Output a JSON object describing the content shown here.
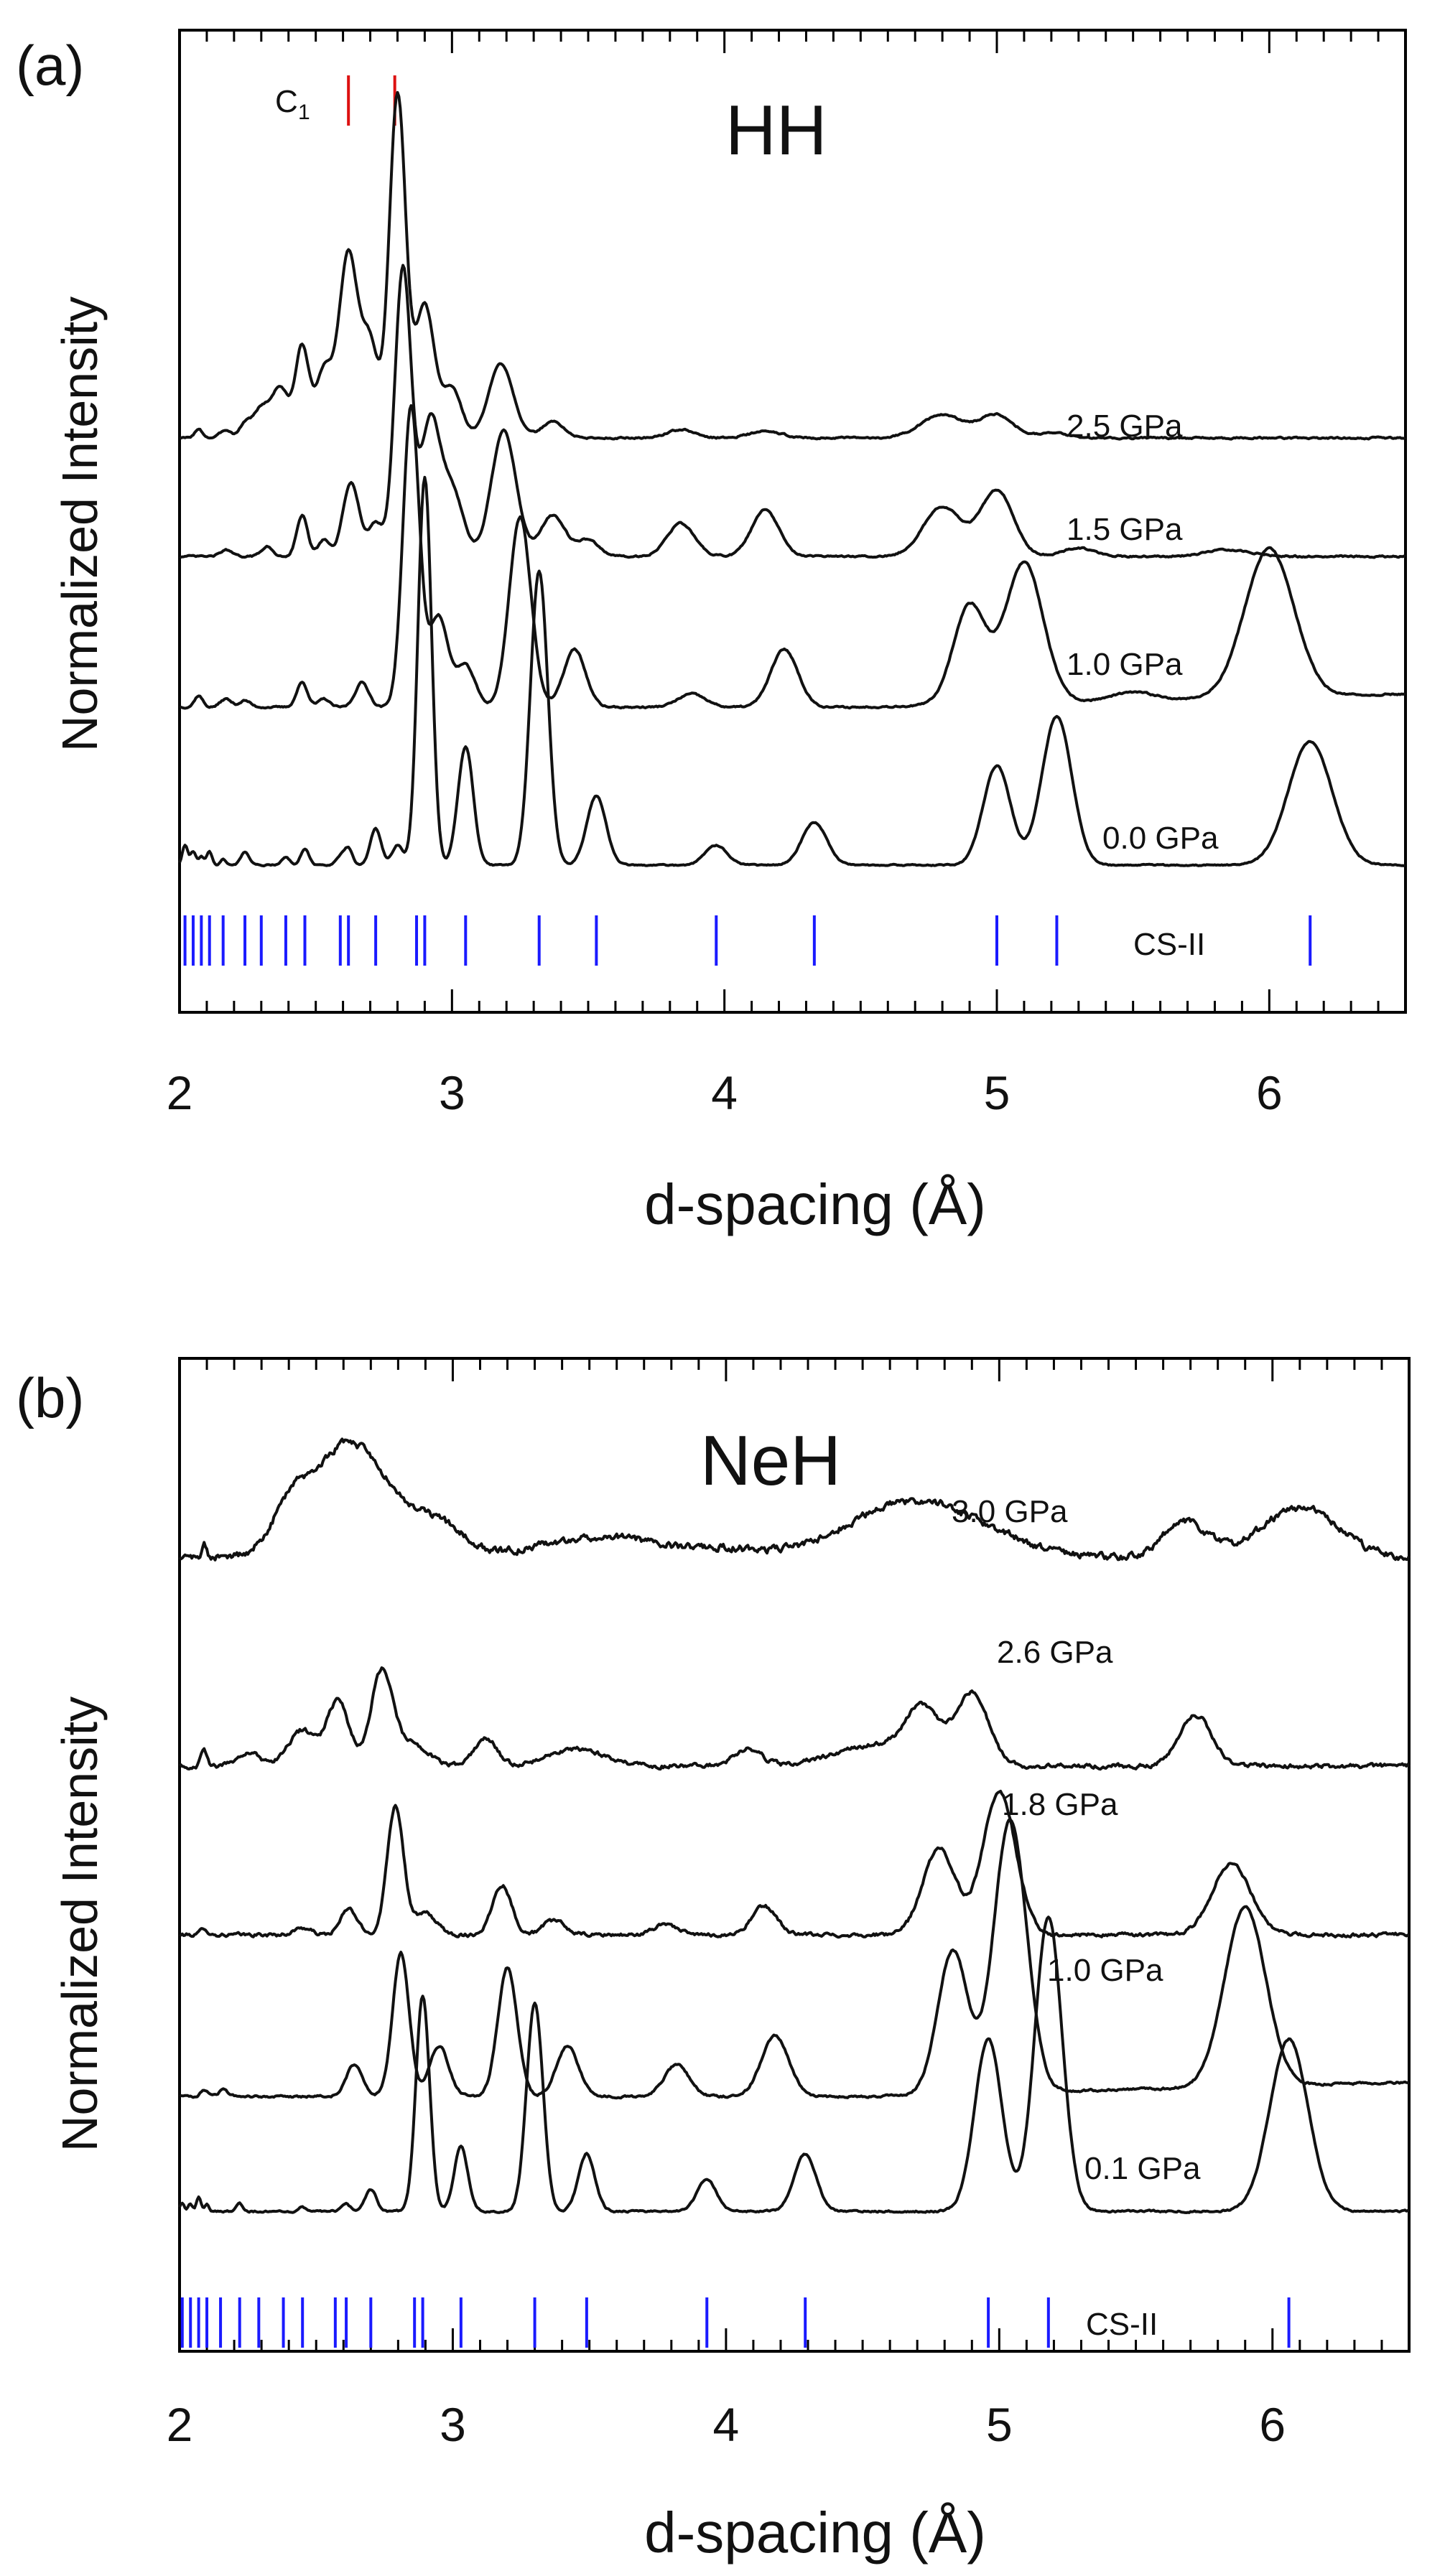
{
  "chart_data": [
    {
      "type": "line",
      "panel_label": "(a)",
      "title": "HH",
      "xlabel": "d-spacing (Å)",
      "ylabel": "Normalized Intensity",
      "xlim": [
        2,
        6.5
      ],
      "ylim": [
        0,
        6
      ],
      "xticks": [
        "2",
        "3",
        "4",
        "5",
        "6"
      ],
      "red_markers": {
        "label": "C",
        "subscript": "1",
        "x": [
          2.62,
          2.79
        ]
      },
      "reference_markers": {
        "label": "CS-II",
        "x": [
          2.02,
          2.05,
          2.08,
          2.11,
          2.16,
          2.24,
          2.3,
          2.39,
          2.46,
          2.59,
          2.62,
          2.72,
          2.87,
          2.9,
          3.05,
          3.32,
          3.53,
          3.97,
          4.33,
          5.0,
          5.22,
          6.15
        ]
      },
      "series": [
        {
          "name": "2.5 GPa",
          "baseline": 3.2,
          "noise": 0.004,
          "tail": 0.0,
          "peaks": [
            [
              2.07,
              0.05,
              0.015
            ],
            [
              2.17,
              0.05,
              0.02
            ],
            [
              2.24,
              0.08,
              0.02
            ],
            [
              2.3,
              0.18,
              0.03
            ],
            [
              2.37,
              0.3,
              0.03
            ],
            [
              2.45,
              0.55,
              0.025
            ],
            [
              2.53,
              0.4,
              0.03
            ],
            [
              2.62,
              1.12,
              0.035
            ],
            [
              2.7,
              0.55,
              0.03
            ],
            [
              2.8,
              2.08,
              0.03
            ],
            [
              2.9,
              0.8,
              0.035
            ],
            [
              3.0,
              0.3,
              0.035
            ],
            [
              3.18,
              0.45,
              0.045
            ],
            [
              3.37,
              0.1,
              0.04
            ],
            [
              3.84,
              0.05,
              0.05
            ],
            [
              4.15,
              0.04,
              0.06
            ],
            [
              4.8,
              0.14,
              0.08
            ],
            [
              5.0,
              0.14,
              0.06
            ],
            [
              5.2,
              0.03,
              0.06
            ]
          ]
        },
        {
          "name": "1.5 GPa",
          "baseline": 2.1,
          "noise": 0.004,
          "tail": 0.0,
          "peaks": [
            [
              2.17,
              0.04,
              0.02
            ],
            [
              2.32,
              0.06,
              0.02
            ],
            [
              2.45,
              0.25,
              0.02
            ],
            [
              2.53,
              0.1,
              0.02
            ],
            [
              2.63,
              0.45,
              0.03
            ],
            [
              2.72,
              0.2,
              0.025
            ],
            [
              2.82,
              1.75,
              0.03
            ],
            [
              2.92,
              0.8,
              0.035
            ],
            [
              3.0,
              0.4,
              0.04
            ],
            [
              3.19,
              0.76,
              0.045
            ],
            [
              3.37,
              0.25,
              0.045
            ],
            [
              3.5,
              0.1,
              0.04
            ],
            [
              3.84,
              0.2,
              0.05
            ],
            [
              4.15,
              0.28,
              0.05
            ],
            [
              4.8,
              0.3,
              0.07
            ],
            [
              5.0,
              0.4,
              0.06
            ],
            [
              5.3,
              0.05,
              0.06
            ],
            [
              5.85,
              0.04,
              0.08
            ]
          ]
        },
        {
          "name": "1.0 GPa",
          "baseline": 1.1,
          "noise": 0.004,
          "tail": 0.08,
          "peaks": [
            [
              2.07,
              0.07,
              0.015
            ],
            [
              2.17,
              0.05,
              0.02
            ],
            [
              2.24,
              0.04,
              0.02
            ],
            [
              2.45,
              0.15,
              0.02
            ],
            [
              2.53,
              0.05,
              0.02
            ],
            [
              2.67,
              0.15,
              0.025
            ],
            [
              2.85,
              1.82,
              0.03
            ],
            [
              2.95,
              0.55,
              0.035
            ],
            [
              3.05,
              0.25,
              0.035
            ],
            [
              3.25,
              1.15,
              0.04
            ],
            [
              3.45,
              0.35,
              0.04
            ],
            [
              3.88,
              0.08,
              0.05
            ],
            [
              4.22,
              0.35,
              0.05
            ],
            [
              4.9,
              0.6,
              0.06
            ],
            [
              5.1,
              0.85,
              0.07
            ],
            [
              5.5,
              0.05,
              0.08
            ],
            [
              6.0,
              0.9,
              0.09
            ]
          ]
        },
        {
          "name": "0.0 GPa",
          "baseline": 0.0,
          "noise": 0.003,
          "tail": 0.0,
          "peaks": [
            [
              2.02,
              0.12,
              0.01
            ],
            [
              2.05,
              0.08,
              0.01
            ],
            [
              2.08,
              0.05,
              0.01
            ],
            [
              2.11,
              0.08,
              0.01
            ],
            [
              2.16,
              0.04,
              0.01
            ],
            [
              2.24,
              0.08,
              0.015
            ],
            [
              2.39,
              0.05,
              0.015
            ],
            [
              2.46,
              0.1,
              0.015
            ],
            [
              2.59,
              0.05,
              0.015
            ],
            [
              2.62,
              0.1,
              0.015
            ],
            [
              2.72,
              0.22,
              0.02
            ],
            [
              2.8,
              0.12,
              0.02
            ],
            [
              2.9,
              2.35,
              0.025
            ],
            [
              3.05,
              0.72,
              0.028
            ],
            [
              3.32,
              1.78,
              0.032
            ],
            [
              3.53,
              0.42,
              0.035
            ],
            [
              3.97,
              0.12,
              0.04
            ],
            [
              4.33,
              0.26,
              0.045
            ],
            [
              5.0,
              0.6,
              0.05
            ],
            [
              5.22,
              0.9,
              0.055
            ],
            [
              6.15,
              0.75,
              0.08
            ]
          ]
        }
      ]
    },
    {
      "type": "line",
      "panel_label": "(b)",
      "title": "NeH",
      "xlabel": "d-spacing (Å)",
      "ylabel": "Normalized Intensity",
      "xlim": [
        2,
        6.5
      ],
      "ylim": [
        0,
        5.8
      ],
      "xticks": [
        "2",
        "3",
        "4",
        "5",
        "6"
      ],
      "reference_markers": {
        "label": "CS-II",
        "x": [
          2.01,
          2.04,
          2.07,
          2.1,
          2.15,
          2.22,
          2.29,
          2.38,
          2.45,
          2.57,
          2.61,
          2.7,
          2.86,
          2.89,
          3.03,
          3.3,
          3.49,
          3.93,
          4.29,
          4.96,
          5.18,
          6.06
        ]
      },
      "series": [
        {
          "name": "3.0 GPa",
          "baseline": 4.1,
          "noise": 0.02,
          "tail": 0.0,
          "peaks": [
            [
              2.09,
              0.1,
              0.01
            ],
            [
              2.4,
              0.2,
              0.06
            ],
            [
              2.62,
              0.8,
              0.15
            ],
            [
              2.95,
              0.2,
              0.1
            ],
            [
              3.55,
              0.15,
              0.22
            ],
            [
              4.0,
              0.05,
              0.1
            ],
            [
              4.7,
              0.4,
              0.25
            ],
            [
              5.68,
              0.25,
              0.08
            ],
            [
              6.1,
              0.35,
              0.14
            ]
          ]
        },
        {
          "name": "2.6 GPa",
          "baseline": 3.05,
          "noise": 0.012,
          "tail": 0.0,
          "peaks": [
            [
              2.09,
              0.1,
              0.012
            ],
            [
              2.25,
              0.1,
              0.04
            ],
            [
              2.45,
              0.25,
              0.05
            ],
            [
              2.58,
              0.45,
              0.04
            ],
            [
              2.74,
              0.65,
              0.04
            ],
            [
              2.85,
              0.15,
              0.06
            ],
            [
              3.12,
              0.2,
              0.04
            ],
            [
              3.45,
              0.12,
              0.1
            ],
            [
              4.08,
              0.12,
              0.05
            ],
            [
              4.55,
              0.15,
              0.15
            ],
            [
              4.72,
              0.35,
              0.06
            ],
            [
              4.9,
              0.5,
              0.06
            ],
            [
              5.72,
              0.35,
              0.06
            ]
          ]
        },
        {
          "name": "1.8 GPa",
          "baseline": 1.95,
          "noise": 0.01,
          "tail": 0.0,
          "peaks": [
            [
              2.09,
              0.05,
              0.012
            ],
            [
              2.45,
              0.05,
              0.03
            ],
            [
              2.62,
              0.18,
              0.03
            ],
            [
              2.79,
              0.9,
              0.03
            ],
            [
              2.9,
              0.15,
              0.04
            ],
            [
              3.18,
              0.35,
              0.035
            ],
            [
              3.37,
              0.1,
              0.04
            ],
            [
              3.78,
              0.08,
              0.04
            ],
            [
              4.14,
              0.2,
              0.045
            ],
            [
              4.78,
              0.6,
              0.06
            ],
            [
              5.0,
              1.0,
              0.06
            ],
            [
              5.85,
              0.5,
              0.07
            ]
          ]
        },
        {
          "name": "1.0 GPa",
          "baseline": 0.95,
          "noise": 0.006,
          "tail": 0.1,
          "peaks": [
            [
              2.09,
              0.05,
              0.012
            ],
            [
              2.16,
              0.05,
              0.015
            ],
            [
              2.64,
              0.22,
              0.03
            ],
            [
              2.81,
              1.0,
              0.03
            ],
            [
              2.95,
              0.35,
              0.035
            ],
            [
              3.2,
              0.9,
              0.035
            ],
            [
              3.42,
              0.35,
              0.04
            ],
            [
              3.82,
              0.22,
              0.045
            ],
            [
              4.18,
              0.42,
              0.05
            ],
            [
              4.83,
              1.0,
              0.055
            ],
            [
              5.04,
              1.9,
              0.06
            ],
            [
              5.9,
              1.25,
              0.075
            ]
          ]
        },
        {
          "name": "0.1 GPa",
          "baseline": 0.0,
          "noise": 0.005,
          "tail": 0.0,
          "peaks": [
            [
              2.01,
              0.06,
              0.008
            ],
            [
              2.04,
              0.05,
              0.008
            ],
            [
              2.07,
              0.1,
              0.008
            ],
            [
              2.1,
              0.05,
              0.008
            ],
            [
              2.22,
              0.05,
              0.012
            ],
            [
              2.45,
              0.03,
              0.012
            ],
            [
              2.61,
              0.05,
              0.015
            ],
            [
              2.7,
              0.15,
              0.02
            ],
            [
              2.89,
              1.5,
              0.025
            ],
            [
              3.03,
              0.45,
              0.025
            ],
            [
              3.3,
              1.45,
              0.03
            ],
            [
              3.49,
              0.4,
              0.03
            ],
            [
              3.93,
              0.22,
              0.035
            ],
            [
              4.29,
              0.4,
              0.04
            ],
            [
              4.96,
              1.2,
              0.05
            ],
            [
              5.18,
              2.05,
              0.05
            ],
            [
              6.06,
              1.2,
              0.07
            ]
          ]
        }
      ]
    }
  ]
}
